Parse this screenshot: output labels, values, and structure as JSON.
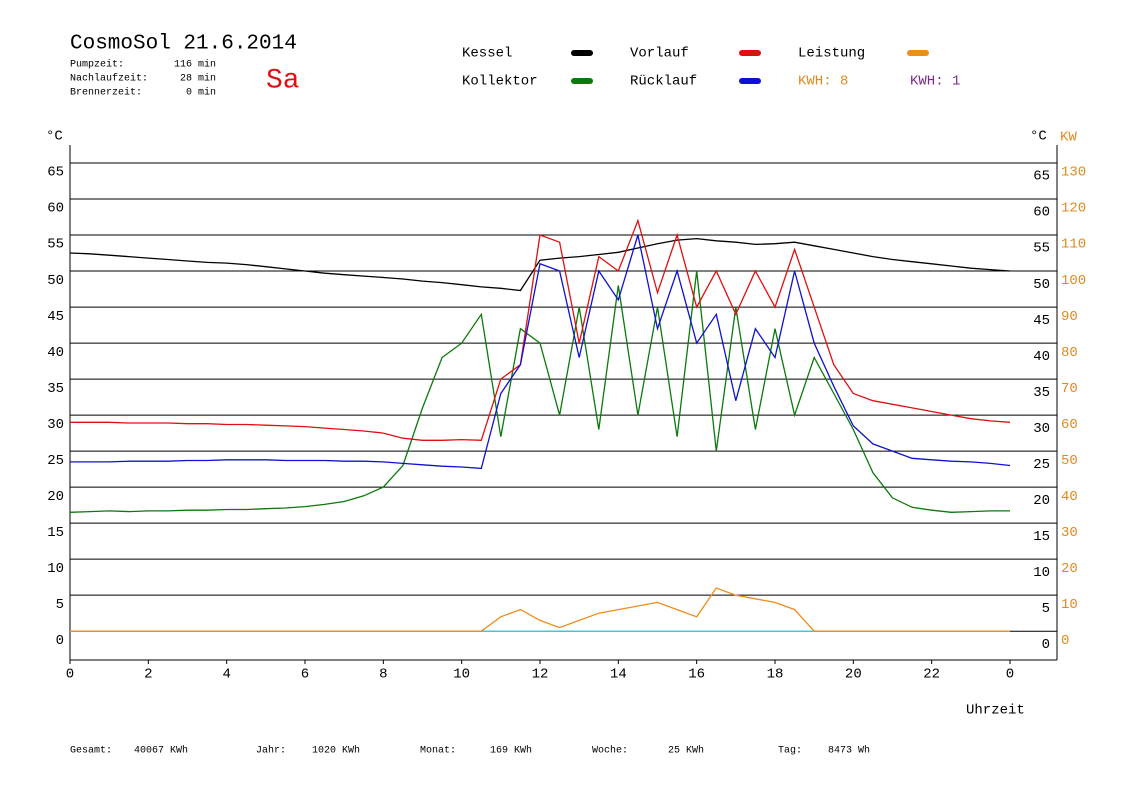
{
  "header": {
    "title": "CosmoSol 21.6.2014",
    "day": "Sa",
    "stats": [
      {
        "label": "Pumpzeit:",
        "value": "116 min"
      },
      {
        "label": "Nachlaufzeit:",
        "value": "28 min"
      },
      {
        "label": "Brennerzeit:",
        "value": "0 min"
      }
    ],
    "kwh_labels": [
      {
        "text": "KWH: 8",
        "color": "#e08a1e"
      },
      {
        "text": "KWH: 1",
        "color": "#7b2a8c"
      }
    ]
  },
  "chart_data": {
    "type": "line",
    "y_unit": "°C",
    "y2_unit": "KW",
    "xlabel": "Uhrzeit",
    "x": [
      0,
      0.5,
      1,
      1.5,
      2,
      2.5,
      3,
      3.5,
      4,
      4.5,
      5,
      5.5,
      6,
      6.5,
      7,
      7.5,
      8,
      8.5,
      9,
      9.5,
      10,
      10.5,
      11,
      11.5,
      12,
      12.5,
      13,
      13.5,
      14,
      14.5,
      15,
      15.5,
      16,
      16.5,
      17,
      17.5,
      18,
      18.5,
      19,
      19.5,
      20,
      20.5,
      21,
      21.5,
      22,
      22.5,
      23,
      23.5,
      24
    ],
    "series": [
      {
        "name": "Kessel",
        "color": "#000000",
        "values": [
          52.5,
          52.4,
          52.2,
          52.0,
          51.8,
          51.6,
          51.4,
          51.2,
          51.1,
          50.9,
          50.6,
          50.3,
          50.0,
          49.7,
          49.5,
          49.3,
          49.1,
          48.9,
          48.6,
          48.4,
          48.1,
          47.8,
          47.6,
          47.3,
          51.5,
          51.8,
          52.0,
          52.3,
          52.6,
          53.2,
          53.8,
          54.3,
          54.5,
          54.2,
          54.0,
          53.7,
          53.8,
          54.0,
          53.5,
          53.0,
          52.5,
          52.0,
          51.6,
          51.3,
          51.0,
          50.7,
          50.4,
          50.2,
          50.0
        ]
      },
      {
        "name": "Kollektor",
        "color": "#0a7a0a",
        "values": [
          16.5,
          16.6,
          16.7,
          16.6,
          16.7,
          16.7,
          16.8,
          16.8,
          16.9,
          16.9,
          17.0,
          17.1,
          17.3,
          17.6,
          18.0,
          18.8,
          20.0,
          23.0,
          31.0,
          38.0,
          40.0,
          44.0,
          27.0,
          42.0,
          40.0,
          30.0,
          45.0,
          28.0,
          48.0,
          30.0,
          45.0,
          27.0,
          50.0,
          25.0,
          45.0,
          28.0,
          42.0,
          30.0,
          38.0,
          33.0,
          28.0,
          22.0,
          18.5,
          17.2,
          16.8,
          16.5,
          16.6,
          16.7,
          16.7
        ]
      },
      {
        "name": "Vorlauf",
        "color": "#e01010",
        "values": [
          29.0,
          29.0,
          29.0,
          28.9,
          28.9,
          28.9,
          28.8,
          28.8,
          28.7,
          28.7,
          28.6,
          28.5,
          28.4,
          28.2,
          28.0,
          27.8,
          27.5,
          26.8,
          26.5,
          26.5,
          26.6,
          26.5,
          35.0,
          37.0,
          55.0,
          54.0,
          40.0,
          52.0,
          50.0,
          57.0,
          47.0,
          55.0,
          45.0,
          50.0,
          44.0,
          50.0,
          45.0,
          53.0,
          45.0,
          37.0,
          33.0,
          32.0,
          31.5,
          31.0,
          30.5,
          30.0,
          29.5,
          29.2,
          29.0
        ]
      },
      {
        "name": "Rücklauf",
        "color": "#1010d0",
        "values": [
          23.5,
          23.5,
          23.5,
          23.6,
          23.6,
          23.6,
          23.7,
          23.7,
          23.8,
          23.8,
          23.8,
          23.7,
          23.7,
          23.7,
          23.6,
          23.6,
          23.5,
          23.3,
          23.1,
          22.9,
          22.8,
          22.6,
          33.0,
          37.0,
          51.0,
          50.0,
          38.0,
          50.0,
          46.0,
          55.0,
          42.0,
          50.0,
          40.0,
          44.0,
          32.0,
          42.0,
          38.0,
          50.0,
          40.0,
          34.0,
          28.5,
          26.0,
          25.0,
          24.0,
          23.8,
          23.6,
          23.5,
          23.3,
          23.0
        ]
      },
      {
        "name": "Leistung",
        "color": "#f08c1c",
        "axis": "y2",
        "values": [
          0,
          0,
          0,
          0,
          0,
          0,
          0,
          0,
          0,
          0,
          0,
          0,
          0,
          0,
          0,
          0,
          0,
          0,
          0,
          0,
          0,
          0,
          4,
          6,
          3,
          1,
          3,
          5,
          6,
          7,
          8,
          6,
          4,
          12,
          10,
          9,
          8,
          6,
          0,
          0,
          0,
          0,
          0,
          0,
          0,
          0,
          0,
          0,
          0
        ]
      }
    ],
    "xlim": [
      0,
      25.2
    ],
    "xticks": [
      0,
      2,
      4,
      6,
      8,
      10,
      12,
      14,
      16,
      18,
      20,
      22,
      {
        "value": 24,
        "label": "0"
      }
    ],
    "ylim": [
      -4,
      67.5
    ],
    "yticks": [
      0,
      5,
      10,
      15,
      20,
      25,
      30,
      35,
      40,
      45,
      50,
      55,
      60,
      65
    ],
    "y2lim": [
      -8,
      135
    ],
    "y2ticks": [
      0,
      10,
      20,
      30,
      40,
      50,
      60,
      70,
      80,
      90,
      100,
      110,
      120,
      130
    ],
    "grid": true
  },
  "footer": [
    {
      "label": "Gesamt:",
      "value": "40067 KWh"
    },
    {
      "label": "Jahr:",
      "value": "1020 KWh"
    },
    {
      "label": "Monat:",
      "value": "169 KWh"
    },
    {
      "label": "Woche:",
      "value": "25 KWh"
    },
    {
      "label": "Tag:",
      "value": "8473 Wh"
    }
  ]
}
